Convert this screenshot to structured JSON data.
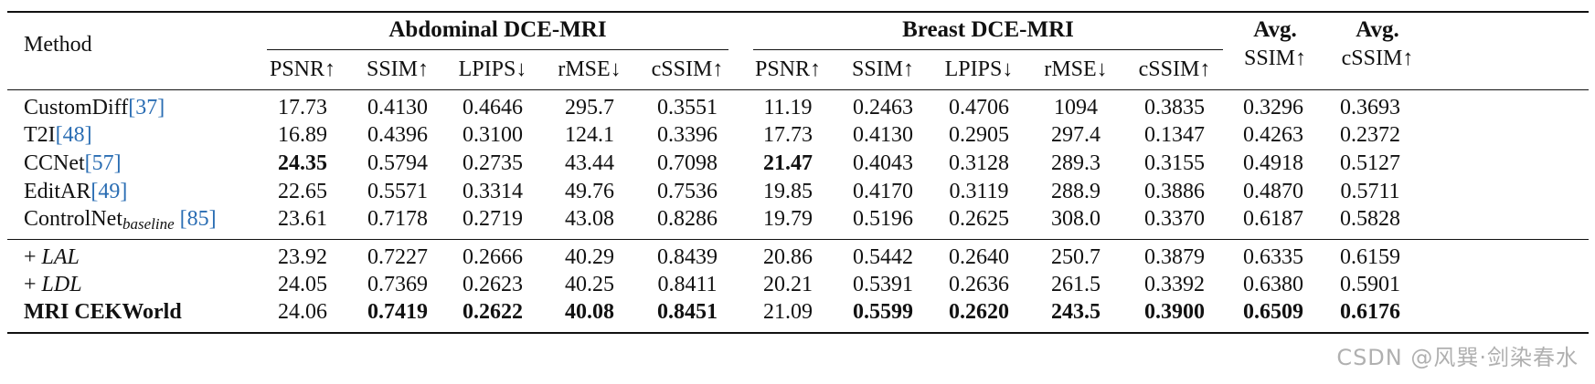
{
  "header": {
    "method_label": "Method",
    "group_abdominal": "Abdominal DCE-MRI",
    "group_breast": "Breast DCE-MRI",
    "avg_ssim_line1": "Avg.",
    "avg_ssim_line2": "SSIM↑",
    "avg_cssim_line1": "Avg.",
    "avg_cssim_line2": "cSSIM↑",
    "metrics": [
      "PSNR↑",
      "SSIM↑",
      "LPIPS↓",
      "rMSE↓",
      "cSSIM↑",
      "PSNR↑",
      "SSIM↑",
      "LPIPS↓",
      "rMSE↓",
      "cSSIM↑"
    ]
  },
  "rows": [
    {
      "name": "CustomDiff",
      "cite": "[37]",
      "values": [
        "17.73",
        "0.4130",
        "0.4646",
        "295.7",
        "0.3551",
        "11.19",
        "0.2463",
        "0.4706",
        "1094",
        "0.3835",
        "0.3296",
        "0.3693"
      ]
    },
    {
      "name": "T2I",
      "cite": "[48]",
      "values": [
        "16.89",
        "0.4396",
        "0.3100",
        "124.1",
        "0.3396",
        "17.73",
        "0.4130",
        "0.2905",
        "297.4",
        "0.1347",
        "0.4263",
        "0.2372"
      ]
    },
    {
      "name": "CCNet",
      "cite": "[57]",
      "values": [
        "24.35",
        "0.5794",
        "0.2735",
        "43.44",
        "0.7098",
        "21.47",
        "0.4043",
        "0.3128",
        "289.3",
        "0.3155",
        "0.4918",
        "0.5127"
      ]
    },
    {
      "name": "EditAR",
      "cite": "[49]",
      "values": [
        "22.65",
        "0.5571",
        "0.3314",
        "49.76",
        "0.7536",
        "19.85",
        "0.4170",
        "0.3119",
        "288.9",
        "0.3886",
        "0.4870",
        "0.5711"
      ]
    },
    {
      "name": "ControlNet",
      "sub": "baseline",
      "cite": "[85]",
      "values": [
        "23.61",
        "0.7178",
        "0.2719",
        "43.08",
        "0.8286",
        "19.79",
        "0.5196",
        "0.2625",
        "308.0",
        "0.3370",
        "0.6187",
        "0.5828"
      ]
    },
    {
      "prefix": "+ ",
      "name": "LAL",
      "values": [
        "23.92",
        "0.7227",
        "0.2666",
        "40.29",
        "0.8439",
        "20.86",
        "0.5442",
        "0.2640",
        "250.7",
        "0.3879",
        "0.6335",
        "0.6159"
      ]
    },
    {
      "prefix": "+ ",
      "name": "LDL",
      "values": [
        "24.05",
        "0.7369",
        "0.2623",
        "40.25",
        "0.8411",
        "20.21",
        "0.5391",
        "0.2636",
        "261.5",
        "0.3392",
        "0.6380",
        "0.5901"
      ]
    },
    {
      "name": "MRI CEKWorld",
      "values": [
        "24.06",
        "0.7419",
        "0.2622",
        "40.08",
        "0.8451",
        "21.09",
        "0.5599",
        "0.2620",
        "243.5",
        "0.3900",
        "0.6509",
        "0.6176"
      ]
    }
  ],
  "watermark": "CSDN @风巽·剑染春水"
}
